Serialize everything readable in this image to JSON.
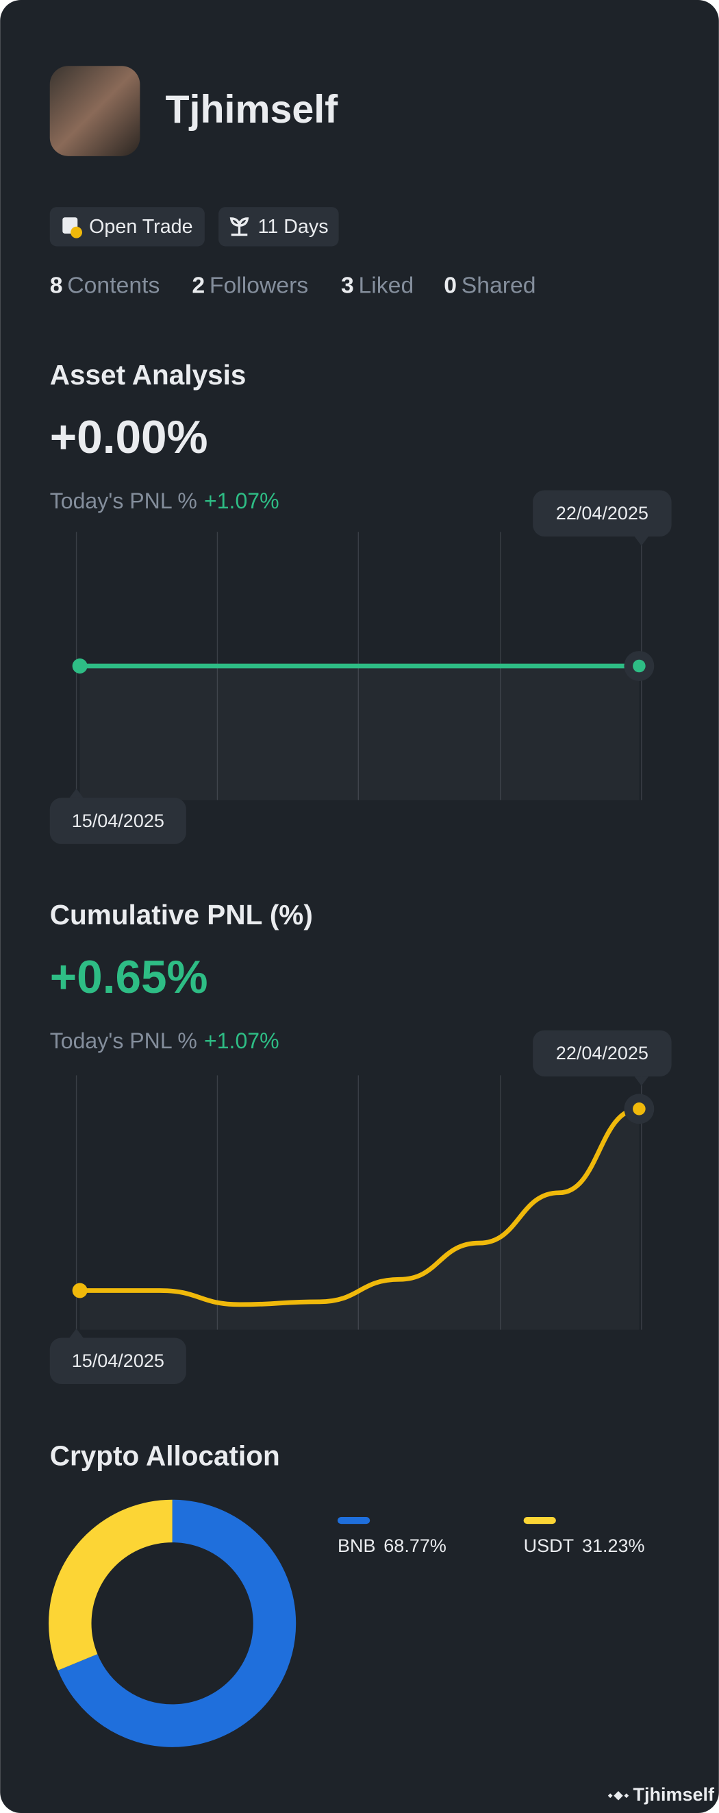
{
  "profile": {
    "name": "Tjhimself",
    "badges": [
      "Open Trade",
      "11 Days"
    ],
    "stats": [
      {
        "value": 8,
        "label": "Contents"
      },
      {
        "value": 2,
        "label": "Followers"
      },
      {
        "value": 3,
        "label": "Liked"
      },
      {
        "value": 0,
        "label": "Shared"
      }
    ]
  },
  "asset_analysis": {
    "title": "Asset Analysis",
    "headline": "+0.00%",
    "today_label": "Today's PNL %",
    "today_value": "+1.07%",
    "chart_data": {
      "type": "line",
      "categories": [
        "15/04/2025",
        null,
        null,
        null,
        null,
        null,
        null,
        "22/04/2025"
      ],
      "values": [
        0,
        0,
        0,
        0,
        0,
        0,
        0,
        0
      ],
      "color": "#2ebd85",
      "ylim": [
        -1,
        1
      ]
    }
  },
  "cumulative_pnl": {
    "title": "Cumulative PNL (%)",
    "headline": "+0.65%",
    "today_label": "Today's PNL %",
    "today_value": "+1.07%",
    "chart_data": {
      "type": "line",
      "categories": [
        "15/04/2025",
        null,
        null,
        null,
        null,
        null,
        null,
        "22/04/2025"
      ],
      "values": [
        0,
        0,
        -0.05,
        -0.04,
        0.04,
        0.17,
        0.35,
        0.65
      ],
      "color": "#f0b90b",
      "ylim": [
        -0.14,
        0.77
      ]
    }
  },
  "crypto_allocation": {
    "title": "Crypto Allocation",
    "chart_data": {
      "type": "donut",
      "categories": [
        "BNB",
        "USDT"
      ],
      "values": [
        68.77,
        31.23
      ],
      "value_labels": [
        "68.77%",
        "31.23%"
      ],
      "colors": [
        "#1f6fdc",
        "#fcd535"
      ]
    }
  },
  "watermark": "Tjhimself"
}
